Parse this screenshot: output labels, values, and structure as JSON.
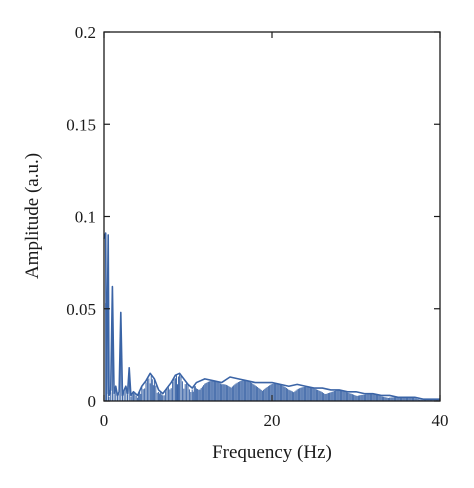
{
  "chart_data": {
    "type": "line",
    "title": "",
    "xlabel": "Frequency (Hz)",
    "ylabel": "Amplitude (a.u.)",
    "xlim": [
      0,
      40
    ],
    "ylim": [
      0,
      0.2
    ],
    "x_ticks": [
      0,
      20,
      40
    ],
    "x_tick_labels": [
      "0",
      "20",
      "40"
    ],
    "y_ticks": [
      0,
      0.05,
      0.1,
      0.15,
      0.2
    ],
    "y_tick_labels": [
      "0",
      "0.05",
      "0.1",
      "0.15",
      "0.2"
    ],
    "grid": false,
    "series": [
      {
        "color": "#3b64a6",
        "x": [
          0.0,
          0.2,
          0.3,
          0.5,
          0.6,
          0.8,
          1.0,
          1.2,
          1.4,
          1.6,
          1.8,
          2.0,
          2.2,
          2.4,
          2.6,
          2.8,
          3.0,
          3.2,
          3.5,
          4.0,
          4.5,
          5.0,
          5.5,
          6.0,
          6.5,
          7.0,
          7.5,
          8.0,
          8.5,
          9.0,
          9.5,
          10.0,
          10.5,
          11.0,
          12.0,
          13.0,
          14.0,
          15.0,
          16.0,
          17.0,
          18.0,
          19.0,
          20.0,
          21.0,
          22.0,
          23.0,
          24.0,
          25.0,
          26.0,
          27.0,
          28.0,
          29.0,
          30.0,
          31.0,
          32.0,
          33.0,
          34.0,
          35.0,
          36.0,
          37.0,
          38.0,
          39.0,
          40.0
        ],
        "y": [
          0.088,
          0.091,
          0.004,
          0.09,
          0.003,
          0.006,
          0.062,
          0.004,
          0.008,
          0.003,
          0.005,
          0.048,
          0.003,
          0.006,
          0.008,
          0.004,
          0.018,
          0.003,
          0.005,
          0.003,
          0.008,
          0.011,
          0.015,
          0.012,
          0.006,
          0.004,
          0.007,
          0.01,
          0.014,
          0.015,
          0.012,
          0.009,
          0.007,
          0.01,
          0.012,
          0.011,
          0.01,
          0.013,
          0.012,
          0.011,
          0.01,
          0.01,
          0.01,
          0.009,
          0.008,
          0.009,
          0.008,
          0.007,
          0.007,
          0.006,
          0.006,
          0.005,
          0.005,
          0.004,
          0.004,
          0.003,
          0.003,
          0.002,
          0.002,
          0.002,
          0.001,
          0.001,
          0.001
        ]
      }
    ]
  }
}
